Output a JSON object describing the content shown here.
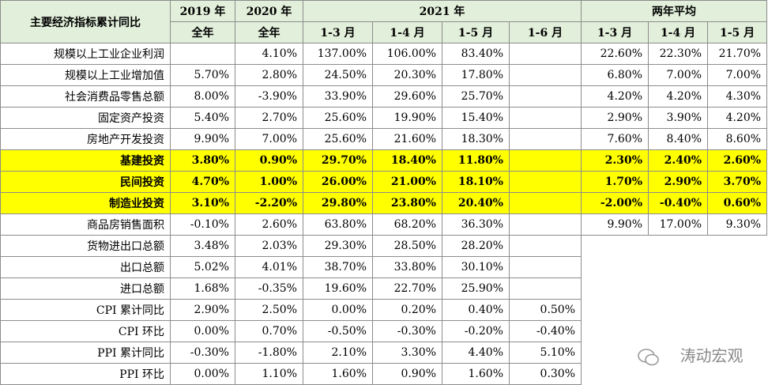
{
  "table": {
    "header_row1": [
      "主要经济指标累计同比",
      "2019 年",
      "2020 年",
      "2021 年",
      "两年平均"
    ],
    "header_row2": [
      "全年",
      "全年",
      "1-3 月",
      "1-4 月",
      "1-5 月",
      "1-6 月",
      "1-3 月",
      "1-4 月",
      "1-5 月"
    ],
    "rows": [
      {
        "label": "规模以上工业企业利润",
        "cells": [
          null,
          "4.10%",
          "137.00%",
          "106.00%",
          "83.40%",
          null,
          "22.60%",
          "22.30%",
          "21.70%"
        ]
      },
      {
        "label": "规模以上工业增加值",
        "cells": [
          "5.70%",
          "2.80%",
          "24.50%",
          "20.30%",
          "17.80%",
          null,
          "6.80%",
          "7.00%",
          "7.00%"
        ]
      },
      {
        "label": "社会消费品零售总额",
        "cells": [
          "8.00%",
          "-3.90%",
          "33.90%",
          "29.60%",
          "25.70%",
          null,
          "4.20%",
          "4.20%",
          "4.30%"
        ]
      },
      {
        "label": "固定资产投资",
        "cells": [
          "5.40%",
          "2.70%",
          "25.60%",
          "19.90%",
          "15.40%",
          null,
          "2.90%",
          "3.90%",
          "4.20%"
        ]
      },
      {
        "label": "房地产开发投资",
        "cells": [
          "9.90%",
          "7.00%",
          "25.60%",
          "21.60%",
          "18.30%",
          null,
          "7.60%",
          "8.40%",
          "8.60%"
        ]
      },
      {
        "label": "基建投资",
        "highlight": true,
        "cells": [
          "3.80%",
          "0.90%",
          "29.70%",
          "18.40%",
          "11.80%",
          null,
          "2.30%",
          "2.40%",
          "2.60%"
        ]
      },
      {
        "label": "民间投资",
        "highlight": true,
        "cells": [
          "4.70%",
          "1.00%",
          "26.00%",
          "21.00%",
          "18.10%",
          null,
          "1.70%",
          "2.90%",
          "3.70%"
        ]
      },
      {
        "label": "制造业投资",
        "highlight": true,
        "cells": [
          "3.10%",
          "-2.20%",
          "29.80%",
          "23.80%",
          "20.40%",
          null,
          "-2.00%",
          "-0.40%",
          "0.60%"
        ]
      },
      {
        "label": "商品房销售面积",
        "cells": [
          "-0.10%",
          "2.60%",
          "63.80%",
          "68.20%",
          "36.30%",
          null,
          "9.90%",
          "17.00%",
          "9.30%"
        ]
      },
      {
        "label": "货物进出口总额",
        "cells": [
          "3.48%",
          "2.03%",
          "29.30%",
          "28.50%",
          "28.20%",
          null
        ]
      },
      {
        "label": "出口总额",
        "cells": [
          "5.02%",
          "4.01%",
          "38.70%",
          "33.80%",
          "30.10%",
          null
        ]
      },
      {
        "label": "进口总额",
        "cells": [
          "1.68%",
          "-0.35%",
          "19.60%",
          "22.70%",
          "25.90%",
          null
        ]
      },
      {
        "label": "CPI 累计同比",
        "cells": [
          "2.90%",
          "2.50%",
          "0.00%",
          "0.20%",
          "0.40%",
          "0.50%"
        ]
      },
      {
        "label": "CPI 环比",
        "cells": [
          "0.00%",
          "0.70%",
          "-0.50%",
          "-0.30%",
          "-0.20%",
          "-0.40%"
        ]
      },
      {
        "label": "PPI 累计同比",
        "cells": [
          "-0.30%",
          "-1.80%",
          "2.10%",
          "3.30%",
          "4.40%",
          "5.10%"
        ]
      },
      {
        "label": "PPI 环比",
        "cells": [
          "0.00%",
          "1.10%",
          "1.60%",
          "0.90%",
          "1.60%",
          "0.30%"
        ]
      }
    ],
    "watermark": "涛动宏观"
  }
}
